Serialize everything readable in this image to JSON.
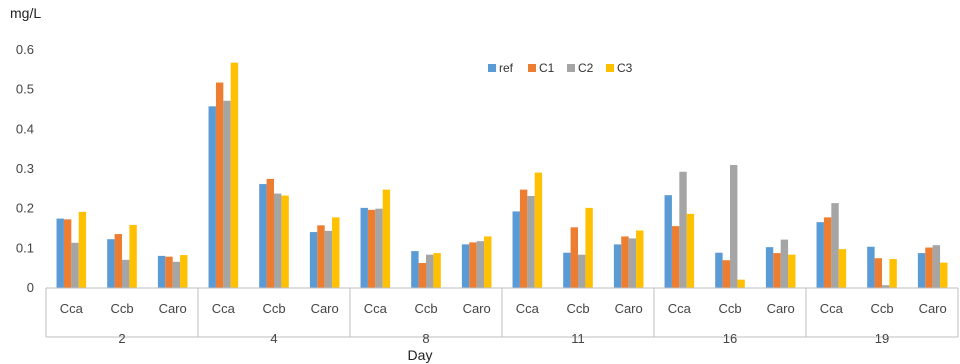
{
  "chart_data": {
    "type": "bar",
    "unit_label": "mg/L",
    "xlabel": "Day",
    "ylabel": "",
    "ylim": [
      0,
      0.6
    ],
    "yticks": [
      "0",
      "0.1",
      "0.2",
      "0.3",
      "0.4",
      "0.5",
      "0.6"
    ],
    "grid": false,
    "legend_position": "top-center",
    "groups": [
      "2",
      "4",
      "8",
      "11",
      "16",
      "19"
    ],
    "subcategories": [
      "Cca",
      "Ccb",
      "Caro"
    ],
    "series": [
      {
        "name": "ref",
        "color": "#5B9BD5",
        "values": [
          0.175,
          0.123,
          0.081,
          0.458,
          0.262,
          0.141,
          0.202,
          0.093,
          0.11,
          0.193,
          0.089,
          0.11,
          0.234,
          0.089,
          0.103,
          0.166,
          0.104,
          0.088
        ]
      },
      {
        "name": "C1",
        "color": "#ED7D31",
        "values": [
          0.173,
          0.136,
          0.079,
          0.518,
          0.275,
          0.158,
          0.197,
          0.063,
          0.115,
          0.248,
          0.153,
          0.13,
          0.156,
          0.07,
          0.088,
          0.178,
          0.075,
          0.102
        ]
      },
      {
        "name": "C2",
        "color": "#A5A5A5",
        "values": [
          0.114,
          0.071,
          0.066,
          0.472,
          0.238,
          0.144,
          0.2,
          0.084,
          0.118,
          0.232,
          0.084,
          0.125,
          0.293,
          0.31,
          0.122,
          0.214,
          0.007,
          0.108
        ]
      },
      {
        "name": "C3",
        "color": "#FFC000",
        "values": [
          0.192,
          0.159,
          0.083,
          0.568,
          0.233,
          0.178,
          0.248,
          0.088,
          0.13,
          0.291,
          0.202,
          0.145,
          0.187,
          0.021,
          0.084,
          0.098,
          0.073,
          0.064
        ]
      }
    ]
  }
}
